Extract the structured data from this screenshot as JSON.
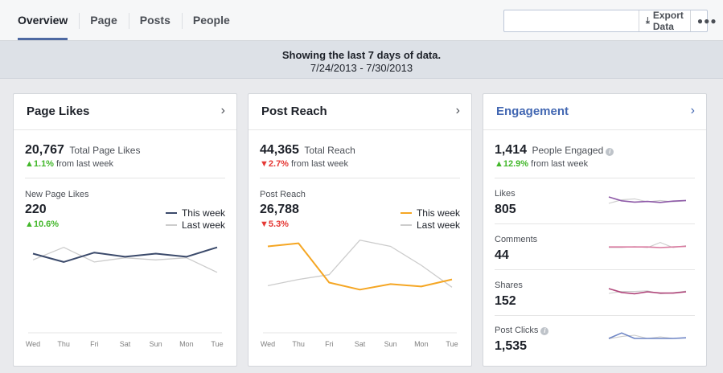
{
  "tabs": [
    {
      "label": "Overview",
      "active": true
    },
    {
      "label": "Page"
    },
    {
      "label": "Posts"
    },
    {
      "label": "People"
    }
  ],
  "toolbar": {
    "search_value": "",
    "export_label": "Export Data",
    "export_icon": "download-icon",
    "more_icon": "more-icon"
  },
  "banner": {
    "line1": "Showing the last 7 days of data.",
    "line2": "7/24/2013 - 7/30/2013"
  },
  "colors": {
    "this_week_navy": "#3b4a6b",
    "this_week_orange": "#f5a623",
    "last_week_gray": "#cccccc",
    "up_green": "#42b72a",
    "down_red": "#e53935",
    "link_blue": "#4267b2"
  },
  "page_likes": {
    "title": "Page Likes",
    "total": "20,767",
    "total_label": "Total Page Likes",
    "change_arrow": "▲",
    "change_pct": "1.1%",
    "change_suffix": "from last week",
    "sub_label": "New Page Likes",
    "sub_value": "220",
    "sub_arrow": "▲",
    "sub_pct": "10.6%",
    "legend_this": "This week",
    "legend_last": "Last week"
  },
  "post_reach": {
    "title": "Post Reach",
    "total": "44,365",
    "total_label": "Total Reach",
    "change_arrow": "▼",
    "change_pct": "2.7%",
    "change_suffix": "from last week",
    "sub_label": "Post Reach",
    "sub_value": "26,788",
    "sub_arrow": "▼",
    "sub_pct": "5.3%",
    "legend_this": "This week",
    "legend_last": "Last week"
  },
  "engagement": {
    "title": "Engagement",
    "total": "1,414",
    "total_label": "People Engaged",
    "change_arrow": "▲",
    "change_pct": "12.9%",
    "change_suffix": "from last week",
    "metrics": [
      {
        "label": "Likes",
        "value": "805"
      },
      {
        "label": "Comments",
        "value": "44"
      },
      {
        "label": "Shares",
        "value": "152"
      },
      {
        "label": "Post Clicks",
        "value": "1,535"
      }
    ]
  },
  "chart_data": [
    {
      "type": "line",
      "title": "New Page Likes",
      "x": [
        "Wed",
        "Thu",
        "Fri",
        "Sat",
        "Sun",
        "Mon",
        "Tue"
      ],
      "series": [
        {
          "name": "This week",
          "values": [
            36,
            28,
            37,
            33,
            36,
            33,
            42
          ]
        },
        {
          "name": "Last week",
          "values": [
            30,
            42,
            28,
            32,
            30,
            32,
            18
          ]
        }
      ],
      "ylim": [
        -40,
        58
      ],
      "grid": false,
      "legend": "top-right"
    },
    {
      "type": "line",
      "title": "Post Reach",
      "x": [
        "Wed",
        "Thu",
        "Fri",
        "Sat",
        "Sun",
        "Mon",
        "Tue"
      ],
      "series": [
        {
          "name": "This week",
          "values": [
            60,
            64,
            14,
            5,
            12,
            9,
            18
          ]
        },
        {
          "name": "Last week",
          "values": [
            10,
            18,
            24,
            68,
            60,
            36,
            8
          ]
        }
      ],
      "ylim": [
        -50,
        80
      ],
      "grid": false,
      "legend": "top-right"
    }
  ],
  "sparklines": [
    {
      "name": "Likes",
      "this_week": [
        70,
        46,
        38,
        42,
        36,
        44,
        48
      ],
      "last_week": [
        30,
        52,
        58,
        40,
        48,
        40,
        46
      ]
    },
    {
      "name": "Comments",
      "this_week": [
        44,
        44,
        44,
        44,
        40,
        44,
        48
      ],
      "last_week": [
        40,
        40,
        46,
        40,
        72,
        40,
        52
      ]
    },
    {
      "name": "Shares",
      "this_week": [
        70,
        46,
        38,
        50,
        42,
        42,
        50
      ],
      "last_week": [
        40,
        52,
        52,
        56,
        38,
        44,
        54
      ]
    },
    {
      "name": "Post Clicks",
      "this_week": [
        40,
        74,
        40,
        40,
        40,
        40,
        44
      ],
      "last_week": [
        38,
        52,
        60,
        40,
        50,
        40,
        44
      ]
    }
  ]
}
